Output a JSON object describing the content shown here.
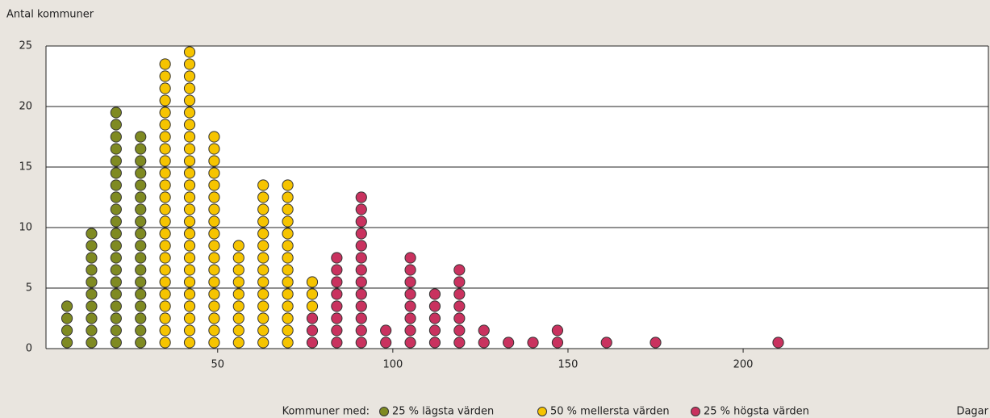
{
  "chart_data": {
    "type": "dot",
    "y_label": "Antal kommuner",
    "x_label": "Dagar",
    "legend_title": "Kommuner med:",
    "xlim": [
      1,
      270
    ],
    "xticks": [
      50,
      100,
      150,
      200
    ],
    "ylim": [
      0,
      25
    ],
    "yticks": [
      0,
      5,
      10,
      15,
      20,
      25
    ],
    "grid": true,
    "series": [
      {
        "name": "25 % lägsta värden",
        "color": "#7f8a22",
        "x": [
          7,
          14,
          21,
          28
        ],
        "values": [
          4,
          10,
          20,
          18
        ]
      },
      {
        "name": "50 % mellersta värden",
        "color": "#f6c400",
        "x": [
          35,
          42,
          49,
          56,
          63,
          70,
          77
        ],
        "values": [
          24,
          25,
          18,
          9,
          14,
          14,
          3
        ]
      },
      {
        "name": "25 % högsta värden",
        "color": "#c9325f",
        "x": [
          77,
          84,
          91,
          98,
          105,
          112,
          119,
          126,
          133,
          140,
          147,
          161,
          175,
          210
        ],
        "values": [
          3,
          8,
          13,
          2,
          8,
          5,
          7,
          2,
          1,
          1,
          2,
          1,
          1,
          1
        ]
      }
    ]
  }
}
